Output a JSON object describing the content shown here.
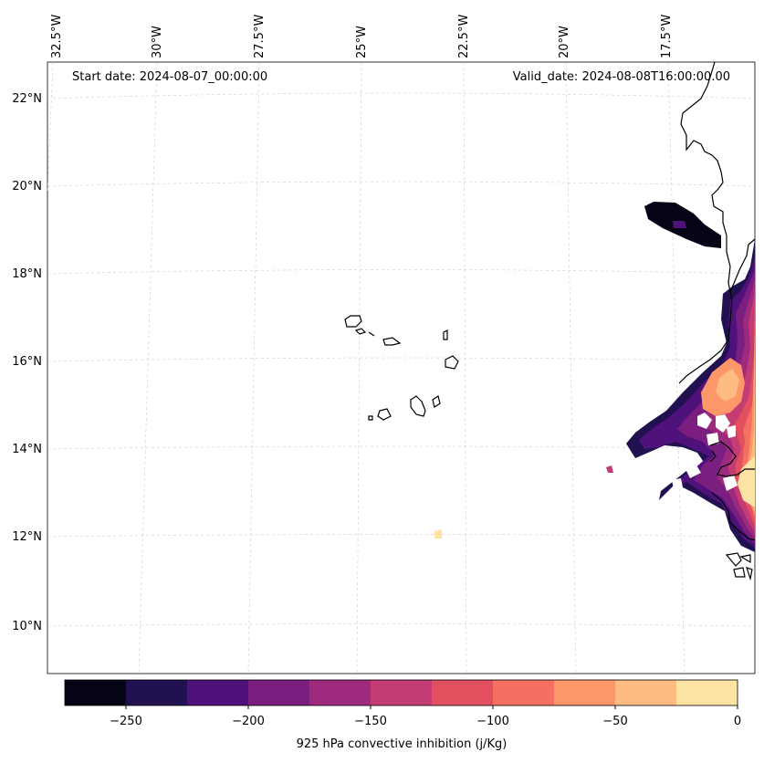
{
  "header": {
    "start_date": "Start date: 2024-08-07_00:00:00",
    "valid_date": "Valid_date: 2024-08-08T16:00:00.00"
  },
  "longitude_labels": [
    "32.5°W",
    "30°W",
    "27.5°W",
    "25°W",
    "22.5°W",
    "20°W",
    "17.5°W"
  ],
  "latitude_labels": [
    "22°N",
    "20°N",
    "18°N",
    "16°N",
    "14°N",
    "12°N",
    "10°N"
  ],
  "colorbar": {
    "label": "925 hPa convective inhibition (j/Kg)",
    "ticks": [
      "−250",
      "−200",
      "−150",
      "−100",
      "−50",
      "0"
    ],
    "colors": [
      "#050316",
      "#221150",
      "#4f127b",
      "#7a1f80",
      "#9e2a7e",
      "#c43c74",
      "#e2505f",
      "#f47161",
      "#fd9668",
      "#febb82",
      "#fde4a5"
    ],
    "levels": [
      -275,
      -250,
      -225,
      -200,
      -175,
      -150,
      -125,
      -100,
      -75,
      -50,
      -25,
      0
    ]
  }
}
